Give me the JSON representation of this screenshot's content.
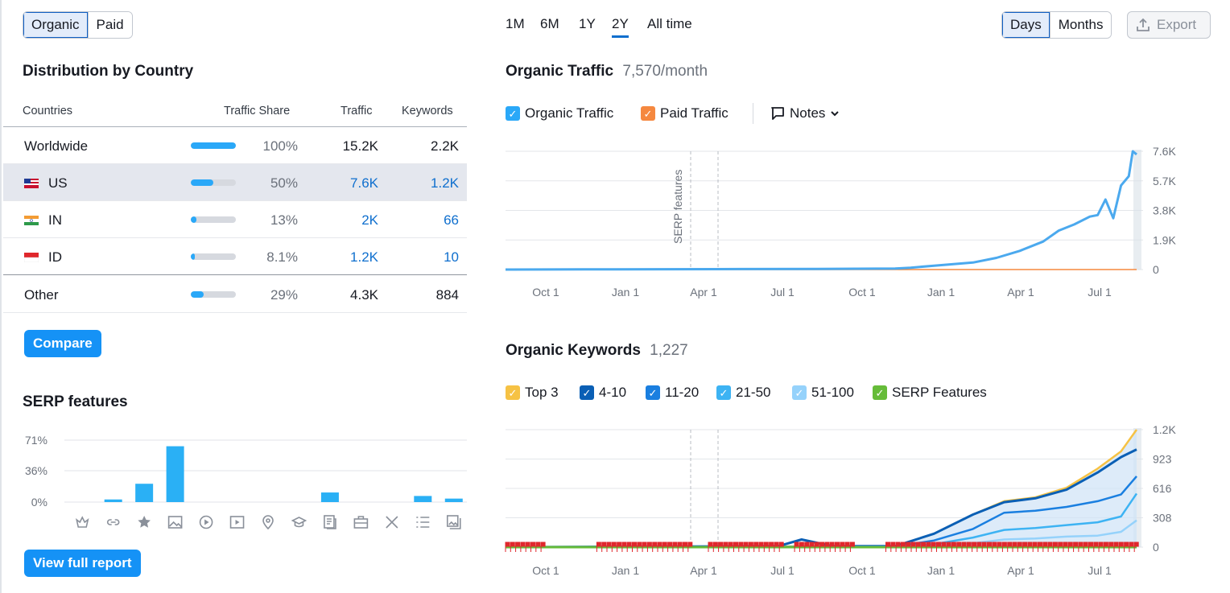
{
  "toggle": {
    "organic": "Organic",
    "paid": "Paid"
  },
  "distribution": {
    "title": "Distribution by Country",
    "headers": {
      "countries": "Countries",
      "share": "Traffic Share",
      "traffic": "Traffic",
      "keywords": "Keywords"
    },
    "rows": [
      {
        "name": "Worldwide",
        "flag": "",
        "share": "100%",
        "share_value": 1.0,
        "traffic": "15.2K",
        "keywords": "2.2K",
        "linked": false
      },
      {
        "name": "US",
        "flag": "us-flag-icon",
        "share": "50%",
        "share_value": 0.5,
        "traffic": "7.6K",
        "keywords": "1.2K",
        "linked": true
      },
      {
        "name": "IN",
        "flag": "in-flag-icon",
        "share": "13%",
        "share_value": 0.13,
        "traffic": "2K",
        "keywords": "66",
        "linked": true
      },
      {
        "name": "ID",
        "flag": "id-flag-icon",
        "share": "8.1%",
        "share_value": 0.081,
        "traffic": "1.2K",
        "keywords": "10",
        "linked": true
      },
      {
        "name": "Other",
        "flag": "",
        "share": "29%",
        "share_value": 0.29,
        "traffic": "4.3K",
        "keywords": "884",
        "linked": false
      }
    ],
    "compare_label": "Compare"
  },
  "serp": {
    "title": "SERP features",
    "view_full_report": "View full report",
    "icons": [
      "featured-snippet-icon",
      "link-icon",
      "star-icon",
      "image-icon",
      "video-icon",
      "video-carousel-icon",
      "local-pack-icon",
      "knowledge-panel-icon",
      "news-icon",
      "jobs-icon",
      "x-icon",
      "list-icon",
      "image-pack-icon"
    ]
  },
  "periods": [
    "1M",
    "6M",
    "1Y",
    "2Y",
    "All time"
  ],
  "active_period": "2Y",
  "granularity": {
    "days": "Days",
    "months": "Months"
  },
  "export_label": "Export",
  "organic_traffic": {
    "title": "Organic Traffic",
    "value": "7,570/month",
    "legend": {
      "organic": "Organic Traffic",
      "paid": "Paid Traffic",
      "notes": "Notes"
    }
  },
  "organic_keywords": {
    "title": "Organic Keywords",
    "value": "1,227",
    "legend": [
      "Top 3",
      "4-10",
      "11-20",
      "21-50",
      "51-100",
      "SERP Features"
    ]
  },
  "colors": {
    "accent": "#1592f6",
    "organic": "#4ba9ee",
    "paid": "#f5883f",
    "top3": "#f6c244",
    "pos4_10": "#0a5fb5",
    "pos11_20": "#1a7fe0",
    "pos21_50": "#3db3f3",
    "pos51_100": "#95d2fb",
    "serp_features": "#66bc39",
    "serp_flag": "#e0272c"
  },
  "chart_data": [
    {
      "type": "bar",
      "title": "SERP features",
      "categories": [
        "Featured snippet",
        "Sitelinks",
        "Reviews",
        "Image",
        "Video",
        "Featured video",
        "Local pack",
        "Knowledge panel",
        "Top stories",
        "Jobs",
        "X (Twitter)",
        "People also ask",
        "Image pack"
      ],
      "values": [
        0,
        3,
        21,
        64,
        0,
        0,
        0,
        0,
        11,
        0,
        0,
        7,
        4
      ],
      "y_ticks": [
        "0%",
        "36%",
        "71%"
      ],
      "ylim": [
        0,
        71
      ]
    },
    {
      "type": "line",
      "title": "Organic Traffic",
      "x_ticks": [
        "Oct 1",
        "Jan 1",
        "Apr 1",
        "Jul 1",
        "Oct 1",
        "Jan 1",
        "Apr 1",
        "Jul 1"
      ],
      "y_ticks": [
        "0",
        "1.9K",
        "3.8K",
        "5.7K",
        "7.6K"
      ],
      "ylim": [
        0,
        7600
      ],
      "annotation": "SERP features",
      "series": [
        {
          "name": "Organic Traffic",
          "x": [
            0,
            10,
            20,
            30,
            40,
            50,
            52,
            55,
            60,
            63,
            66,
            69,
            71,
            73,
            75,
            76,
            77,
            78,
            79,
            80,
            80.5,
            81
          ],
          "values": [
            0,
            10,
            20,
            30,
            40,
            60,
            120,
            250,
            450,
            750,
            1200,
            1800,
            2500,
            2900,
            3400,
            3500,
            4500,
            3300,
            5400,
            6000,
            7600,
            7400
          ]
        },
        {
          "name": "Paid Traffic",
          "x": [
            0,
            81
          ],
          "values": [
            0,
            0
          ]
        }
      ]
    },
    {
      "type": "area",
      "title": "Organic Keywords",
      "x_ticks": [
        "Oct 1",
        "Jan 1",
        "Apr 1",
        "Jul 1",
        "Oct 1",
        "Jan 1",
        "Apr 1",
        "Jul 1"
      ],
      "y_ticks": [
        "0",
        "308",
        "616",
        "923",
        "1.2K"
      ],
      "ylim": [
        0,
        1227
      ],
      "series": [
        {
          "name": "Top 3",
          "x": [
            0,
            50,
            55,
            60,
            64,
            68,
            72,
            76,
            79,
            81
          ],
          "values": [
            0,
            10,
            140,
            340,
            480,
            520,
            620,
            820,
            1000,
            1227
          ]
        },
        {
          "name": "4-10",
          "x": [
            0,
            35,
            38,
            42,
            50,
            55,
            60,
            64,
            68,
            72,
            76,
            79,
            81
          ],
          "values": [
            0,
            10,
            80,
            10,
            10,
            140,
            340,
            470,
            510,
            600,
            780,
            940,
            1020
          ]
        },
        {
          "name": "11-20",
          "x": [
            0,
            50,
            55,
            60,
            64,
            68,
            72,
            76,
            79,
            81
          ],
          "values": [
            0,
            5,
            70,
            190,
            360,
            380,
            420,
            480,
            550,
            740
          ]
        },
        {
          "name": "21-50",
          "x": [
            0,
            50,
            55,
            60,
            64,
            68,
            72,
            76,
            79,
            81
          ],
          "values": [
            0,
            3,
            30,
            100,
            180,
            200,
            230,
            260,
            320,
            560
          ]
        },
        {
          "name": "51-100",
          "x": [
            0,
            50,
            55,
            60,
            64,
            68,
            72,
            76,
            79,
            81
          ],
          "values": [
            0,
            1,
            10,
            40,
            80,
            90,
            110,
            120,
            160,
            280
          ]
        }
      ]
    }
  ]
}
